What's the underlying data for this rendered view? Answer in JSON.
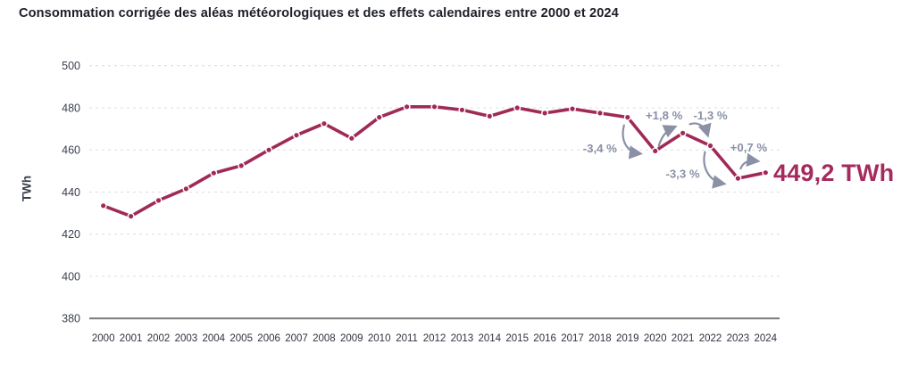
{
  "title": "Consommation corrigée des aléas météorologiques et des effets calendaires entre 2000 et 2024",
  "chart_data": {
    "type": "line",
    "x": [
      2000,
      2001,
      2002,
      2003,
      2004,
      2005,
      2006,
      2007,
      2008,
      2009,
      2010,
      2011,
      2012,
      2013,
      2014,
      2015,
      2016,
      2017,
      2018,
      2019,
      2020,
      2021,
      2022,
      2023,
      2024
    ],
    "values": [
      433.5,
      428.5,
      436,
      441.5,
      449,
      452.5,
      460,
      467,
      472.5,
      465.5,
      475.5,
      480.5,
      480.5,
      479,
      476,
      480,
      477.5,
      479.5,
      477.5,
      475.5,
      459.5,
      468,
      462,
      446.5,
      449.2
    ],
    "ylabel": "TWh",
    "xlabel": "",
    "ylim": [
      380,
      500
    ],
    "yticks": [
      380,
      400,
      420,
      440,
      460,
      480,
      500
    ],
    "grid": true,
    "legend": "none",
    "end_label": "449,2 TWh",
    "annotations": [
      {
        "label": "-3,4 %",
        "from": 2019,
        "to": 2020,
        "direction": "down"
      },
      {
        "label": "+1,8 %",
        "from": 2020,
        "to": 2021,
        "direction": "up"
      },
      {
        "label": "-1,3 %",
        "from": 2021,
        "to": 2022,
        "direction": "down"
      },
      {
        "label": "-3,3 %",
        "from": 2022,
        "to": 2023,
        "direction": "down"
      },
      {
        "label": "+0,7 %",
        "from": 2023,
        "to": 2024,
        "direction": "up"
      }
    ],
    "colors": {
      "line": "#a02a57",
      "marker_halo": "#ffffff",
      "annotation": "#8a90a6",
      "grid": "#dcdce0",
      "axis": "#7c7c7c",
      "tick_label": "#3a3f4d",
      "x_label": "#2f3340",
      "title": "#1c1e29",
      "final_value": "#a52a5e"
    }
  }
}
